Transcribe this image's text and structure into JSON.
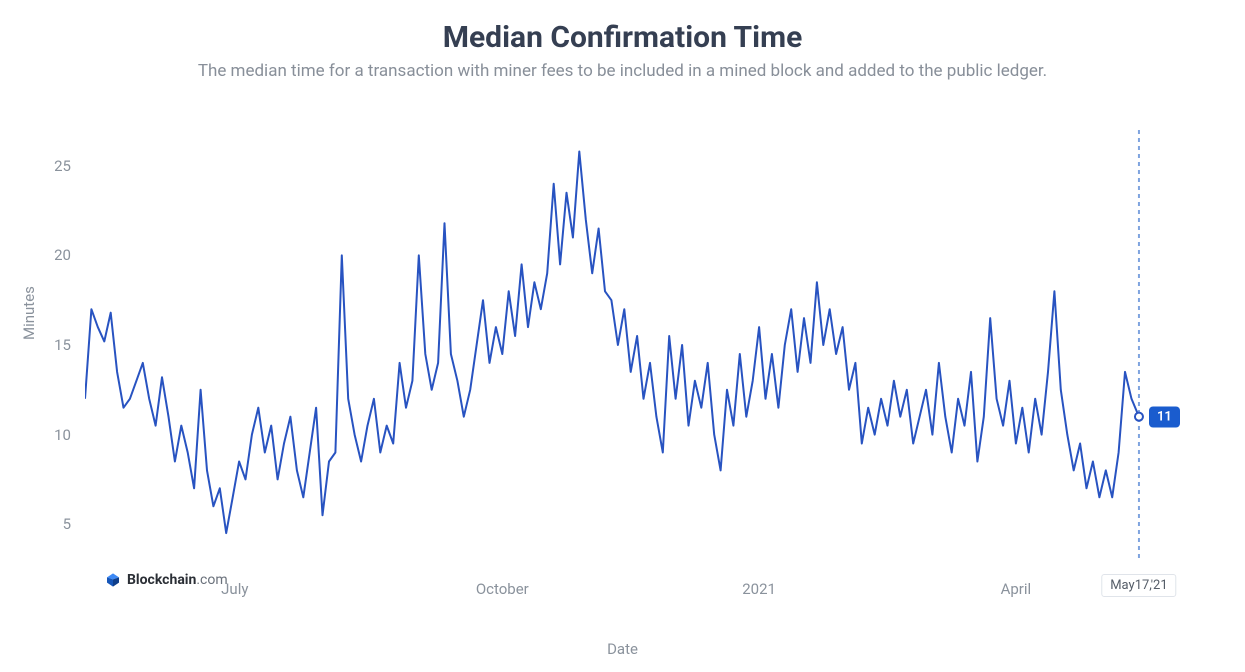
{
  "header": {
    "title": "Median Confirmation Time",
    "subtitle": "The median time for a transaction with miner fees to be included in a mined block and added to the public ledger."
  },
  "chart": {
    "type": "line",
    "yaxis": {
      "label": "Minutes",
      "min": 3,
      "max": 27,
      "ticks": [
        5,
        10,
        15,
        20,
        25
      ],
      "label_fontsize": 15,
      "tick_color": "#8a929c"
    },
    "xaxis": {
      "label": "Date",
      "tick_labels": [
        "July",
        "October",
        "2021",
        "April"
      ],
      "tick_positions": [
        0.14,
        0.39,
        0.63,
        0.87
      ],
      "label_fontsize": 15,
      "tick_color": "#8a929c"
    },
    "line_color": "#2853c1",
    "line_width": 2,
    "background_color": "#ffffff",
    "cursor": {
      "x_position": 0.985,
      "line_color": "#7fa4df",
      "line_dash": "4 4",
      "value_badge": {
        "text": "11",
        "bg": "#1a5cce",
        "color": "#ffffff"
      },
      "date_badge": {
        "text": "May17,'21",
        "bg": "#ffffff",
        "border": "#e0e4ea",
        "color": "#555d68"
      }
    },
    "logo": {
      "brand": "Blockchain",
      "suffix": ".com",
      "icon_color_top": "#3d89f5",
      "icon_color_left": "#1656b9",
      "icon_color_right": "#0f3e8a"
    },
    "series": [
      {
        "x": 0.0,
        "y": 12.0
      },
      {
        "x": 0.006,
        "y": 17.0
      },
      {
        "x": 0.012,
        "y": 16.0
      },
      {
        "x": 0.018,
        "y": 15.2
      },
      {
        "x": 0.024,
        "y": 16.8
      },
      {
        "x": 0.03,
        "y": 13.5
      },
      {
        "x": 0.036,
        "y": 11.5
      },
      {
        "x": 0.042,
        "y": 12.0
      },
      {
        "x": 0.048,
        "y": 13.0
      },
      {
        "x": 0.054,
        "y": 14.0
      },
      {
        "x": 0.06,
        "y": 12.0
      },
      {
        "x": 0.066,
        "y": 10.5
      },
      {
        "x": 0.072,
        "y": 13.2
      },
      {
        "x": 0.078,
        "y": 11.0
      },
      {
        "x": 0.084,
        "y": 8.5
      },
      {
        "x": 0.09,
        "y": 10.5
      },
      {
        "x": 0.096,
        "y": 9.0
      },
      {
        "x": 0.102,
        "y": 7.0
      },
      {
        "x": 0.108,
        "y": 12.5
      },
      {
        "x": 0.114,
        "y": 8.0
      },
      {
        "x": 0.12,
        "y": 6.0
      },
      {
        "x": 0.126,
        "y": 7.0
      },
      {
        "x": 0.132,
        "y": 4.5
      },
      {
        "x": 0.138,
        "y": 6.5
      },
      {
        "x": 0.144,
        "y": 8.5
      },
      {
        "x": 0.15,
        "y": 7.5
      },
      {
        "x": 0.156,
        "y": 10.0
      },
      {
        "x": 0.162,
        "y": 11.5
      },
      {
        "x": 0.168,
        "y": 9.0
      },
      {
        "x": 0.174,
        "y": 10.5
      },
      {
        "x": 0.18,
        "y": 7.5
      },
      {
        "x": 0.186,
        "y": 9.5
      },
      {
        "x": 0.192,
        "y": 11.0
      },
      {
        "x": 0.198,
        "y": 8.0
      },
      {
        "x": 0.204,
        "y": 6.5
      },
      {
        "x": 0.21,
        "y": 9.0
      },
      {
        "x": 0.216,
        "y": 11.5
      },
      {
        "x": 0.222,
        "y": 5.5
      },
      {
        "x": 0.228,
        "y": 8.5
      },
      {
        "x": 0.234,
        "y": 9.0
      },
      {
        "x": 0.24,
        "y": 20.0
      },
      {
        "x": 0.246,
        "y": 12.0
      },
      {
        "x": 0.252,
        "y": 10.0
      },
      {
        "x": 0.258,
        "y": 8.5
      },
      {
        "x": 0.264,
        "y": 10.5
      },
      {
        "x": 0.27,
        "y": 12.0
      },
      {
        "x": 0.276,
        "y": 9.0
      },
      {
        "x": 0.282,
        "y": 10.5
      },
      {
        "x": 0.288,
        "y": 9.5
      },
      {
        "x": 0.294,
        "y": 14.0
      },
      {
        "x": 0.3,
        "y": 11.5
      },
      {
        "x": 0.306,
        "y": 13.0
      },
      {
        "x": 0.312,
        "y": 20.0
      },
      {
        "x": 0.318,
        "y": 14.5
      },
      {
        "x": 0.324,
        "y": 12.5
      },
      {
        "x": 0.33,
        "y": 14.0
      },
      {
        "x": 0.336,
        "y": 21.8
      },
      {
        "x": 0.342,
        "y": 14.5
      },
      {
        "x": 0.348,
        "y": 13.0
      },
      {
        "x": 0.354,
        "y": 11.0
      },
      {
        "x": 0.36,
        "y": 12.5
      },
      {
        "x": 0.366,
        "y": 15.0
      },
      {
        "x": 0.372,
        "y": 17.5
      },
      {
        "x": 0.378,
        "y": 14.0
      },
      {
        "x": 0.384,
        "y": 16.0
      },
      {
        "x": 0.39,
        "y": 14.5
      },
      {
        "x": 0.396,
        "y": 18.0
      },
      {
        "x": 0.402,
        "y": 15.5
      },
      {
        "x": 0.408,
        "y": 19.5
      },
      {
        "x": 0.414,
        "y": 16.0
      },
      {
        "x": 0.42,
        "y": 18.5
      },
      {
        "x": 0.426,
        "y": 17.0
      },
      {
        "x": 0.432,
        "y": 19.0
      },
      {
        "x": 0.438,
        "y": 24.0
      },
      {
        "x": 0.444,
        "y": 19.5
      },
      {
        "x": 0.45,
        "y": 23.5
      },
      {
        "x": 0.456,
        "y": 21.0
      },
      {
        "x": 0.462,
        "y": 25.8
      },
      {
        "x": 0.468,
        "y": 22.0
      },
      {
        "x": 0.474,
        "y": 19.0
      },
      {
        "x": 0.48,
        "y": 21.5
      },
      {
        "x": 0.486,
        "y": 18.0
      },
      {
        "x": 0.492,
        "y": 17.5
      },
      {
        "x": 0.498,
        "y": 15.0
      },
      {
        "x": 0.504,
        "y": 17.0
      },
      {
        "x": 0.51,
        "y": 13.5
      },
      {
        "x": 0.516,
        "y": 15.5
      },
      {
        "x": 0.522,
        "y": 12.0
      },
      {
        "x": 0.528,
        "y": 14.0
      },
      {
        "x": 0.534,
        "y": 11.0
      },
      {
        "x": 0.54,
        "y": 9.0
      },
      {
        "x": 0.546,
        "y": 15.5
      },
      {
        "x": 0.552,
        "y": 12.0
      },
      {
        "x": 0.558,
        "y": 15.0
      },
      {
        "x": 0.564,
        "y": 10.5
      },
      {
        "x": 0.57,
        "y": 13.0
      },
      {
        "x": 0.576,
        "y": 11.5
      },
      {
        "x": 0.582,
        "y": 14.0
      },
      {
        "x": 0.588,
        "y": 10.0
      },
      {
        "x": 0.594,
        "y": 8.0
      },
      {
        "x": 0.6,
        "y": 12.5
      },
      {
        "x": 0.606,
        "y": 10.5
      },
      {
        "x": 0.612,
        "y": 14.5
      },
      {
        "x": 0.618,
        "y": 11.0
      },
      {
        "x": 0.624,
        "y": 13.0
      },
      {
        "x": 0.63,
        "y": 16.0
      },
      {
        "x": 0.636,
        "y": 12.0
      },
      {
        "x": 0.642,
        "y": 14.5
      },
      {
        "x": 0.648,
        "y": 11.5
      },
      {
        "x": 0.654,
        "y": 15.0
      },
      {
        "x": 0.66,
        "y": 17.0
      },
      {
        "x": 0.666,
        "y": 13.5
      },
      {
        "x": 0.672,
        "y": 16.5
      },
      {
        "x": 0.678,
        "y": 14.0
      },
      {
        "x": 0.684,
        "y": 18.5
      },
      {
        "x": 0.69,
        "y": 15.0
      },
      {
        "x": 0.696,
        "y": 17.0
      },
      {
        "x": 0.702,
        "y": 14.5
      },
      {
        "x": 0.708,
        "y": 16.0
      },
      {
        "x": 0.714,
        "y": 12.5
      },
      {
        "x": 0.72,
        "y": 14.0
      },
      {
        "x": 0.726,
        "y": 9.5
      },
      {
        "x": 0.732,
        "y": 11.5
      },
      {
        "x": 0.738,
        "y": 10.0
      },
      {
        "x": 0.744,
        "y": 12.0
      },
      {
        "x": 0.75,
        "y": 10.5
      },
      {
        "x": 0.756,
        "y": 13.0
      },
      {
        "x": 0.762,
        "y": 11.0
      },
      {
        "x": 0.768,
        "y": 12.5
      },
      {
        "x": 0.774,
        "y": 9.5
      },
      {
        "x": 0.78,
        "y": 11.0
      },
      {
        "x": 0.786,
        "y": 12.5
      },
      {
        "x": 0.792,
        "y": 10.0
      },
      {
        "x": 0.798,
        "y": 14.0
      },
      {
        "x": 0.804,
        "y": 11.0
      },
      {
        "x": 0.81,
        "y": 9.0
      },
      {
        "x": 0.816,
        "y": 12.0
      },
      {
        "x": 0.822,
        "y": 10.5
      },
      {
        "x": 0.828,
        "y": 13.5
      },
      {
        "x": 0.834,
        "y": 8.5
      },
      {
        "x": 0.84,
        "y": 11.0
      },
      {
        "x": 0.846,
        "y": 16.5
      },
      {
        "x": 0.852,
        "y": 12.0
      },
      {
        "x": 0.858,
        "y": 10.5
      },
      {
        "x": 0.864,
        "y": 13.0
      },
      {
        "x": 0.87,
        "y": 9.5
      },
      {
        "x": 0.876,
        "y": 11.5
      },
      {
        "x": 0.882,
        "y": 9.0
      },
      {
        "x": 0.888,
        "y": 12.0
      },
      {
        "x": 0.894,
        "y": 10.0
      },
      {
        "x": 0.9,
        "y": 13.5
      },
      {
        "x": 0.906,
        "y": 18.0
      },
      {
        "x": 0.912,
        "y": 12.5
      },
      {
        "x": 0.918,
        "y": 10.0
      },
      {
        "x": 0.924,
        "y": 8.0
      },
      {
        "x": 0.93,
        "y": 9.5
      },
      {
        "x": 0.936,
        "y": 7.0
      },
      {
        "x": 0.942,
        "y": 8.5
      },
      {
        "x": 0.948,
        "y": 6.5
      },
      {
        "x": 0.954,
        "y": 8.0
      },
      {
        "x": 0.96,
        "y": 6.5
      },
      {
        "x": 0.966,
        "y": 9.0
      },
      {
        "x": 0.972,
        "y": 13.5
      },
      {
        "x": 0.978,
        "y": 12.0
      },
      {
        "x": 0.985,
        "y": 11.0
      }
    ]
  }
}
